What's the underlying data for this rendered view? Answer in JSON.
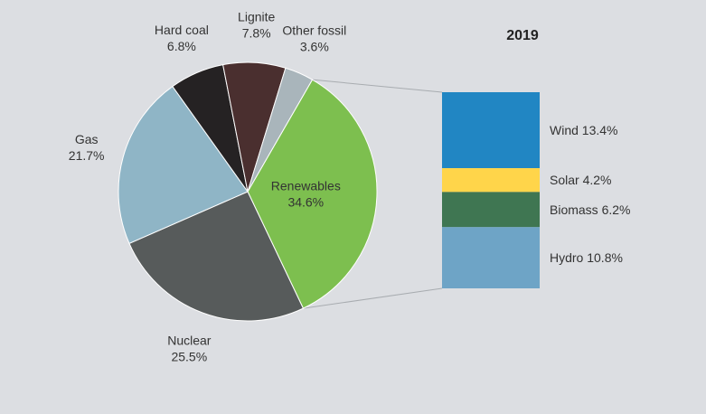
{
  "chart_data": {
    "type": "pie",
    "title": "2019",
    "pie": {
      "slices": [
        {
          "name": "Renewables",
          "value": 34.6,
          "label": "34.6%",
          "color": "#7dbf4f"
        },
        {
          "name": "Nuclear",
          "value": 25.5,
          "label": "25.5%",
          "color": "#575b5b"
        },
        {
          "name": "Gas",
          "value": 21.7,
          "label": "21.7%",
          "color": "#8fb5c6"
        },
        {
          "name": "Hard coal",
          "value": 6.8,
          "label": "6.8%",
          "color": "#252223"
        },
        {
          "name": "Lignite",
          "value": 7.8,
          "label": "7.8%",
          "color": "#4a2f2f"
        },
        {
          "name": "Other fossil",
          "value": 3.6,
          "label": "3.6%",
          "color": "#a9b5bb"
        }
      ]
    },
    "breakdown": {
      "parent": "Renewables",
      "segments": [
        {
          "name": "Wind",
          "value": 13.4,
          "label": "Wind 13.4%",
          "color": "#2186c3"
        },
        {
          "name": "Solar",
          "value": 4.2,
          "label": "Solar 4.2%",
          "color": "#ffd54a"
        },
        {
          "name": "Biomass",
          "value": 6.2,
          "label": "Biomass 6.2%",
          "color": "#3f7652"
        },
        {
          "name": "Hydro",
          "value": 10.8,
          "label": "Hydro 10.8%",
          "color": "#6ea4c6"
        }
      ]
    }
  }
}
